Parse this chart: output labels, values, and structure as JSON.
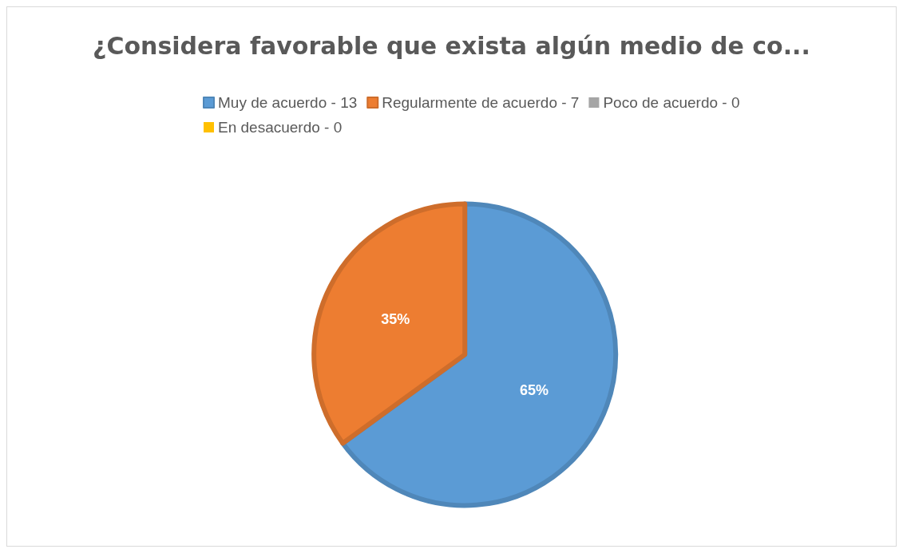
{
  "chart_data": {
    "type": "pie",
    "title": "¿Considera favorable que exista algún medio de co...",
    "categories": [
      "Muy de acuerdo - 13",
      "Regularmente de acuerdo - 7",
      "Poco de acuerdo - 0",
      "En desacuerdo - 0"
    ],
    "values": [
      65,
      35,
      0,
      0
    ],
    "colors": [
      "#5b9bd5",
      "#ed7d31",
      "#a5a5a5",
      "#ffc000"
    ],
    "value_labels": [
      "65%",
      "35%",
      null,
      null
    ],
    "legend": "top"
  }
}
